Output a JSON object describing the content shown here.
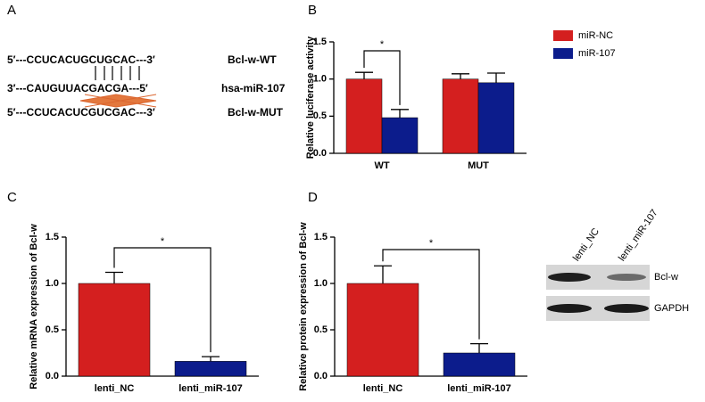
{
  "panel_a": {
    "panel_label": "A",
    "rows": [
      {
        "sequence": "5′---CCUCACUGCUGCAC---3′",
        "name": "Bcl-w-WT"
      },
      {
        "sequence": "3′---CAUGUUACGACGA---5′",
        "name": "hsa-miR-107"
      },
      {
        "sequence": "5′---CCUCACUCGUCGAC---3′",
        "name": "Bcl-w-MUT"
      }
    ]
  },
  "blot": {
    "columns": [
      "lenti_NC",
      "lenti_miR-107"
    ],
    "rows": [
      "Bcl-w",
      "GAPDH"
    ]
  },
  "chart_data": [
    {
      "type": "grouped-bar",
      "panel_label": "B",
      "y_label": "Relative luciferase activity",
      "categories": [
        "WT",
        "MUT"
      ],
      "series": [
        {
          "name": "miR-NC",
          "color": "#d41f1f",
          "values": [
            1.0,
            1.0
          ],
          "errors": [
            0.09,
            0.07
          ]
        },
        {
          "name": "miR-107",
          "color": "#0c1c8c",
          "values": [
            0.48,
            0.95
          ],
          "errors": [
            0.11,
            0.13
          ]
        }
      ],
      "ylim": [
        0,
        1.5
      ],
      "yticks": [
        {
          "value": 0,
          "label": "0.0"
        },
        0.5,
        {
          "value": 1,
          "label": "1.0"
        },
        1.5
      ],
      "significance": "*"
    },
    {
      "type": "bar",
      "panel_label": "C",
      "y_label": "Relative mRNA expression of Bcl-w",
      "categories": [
        "lenti_NC",
        "lenti_miR-107"
      ],
      "values": [
        1.0,
        0.16
      ],
      "errors": [
        0.12,
        0.05
      ],
      "colors": [
        "#d41f1f",
        "#0c1c8c"
      ],
      "ylim": [
        0,
        1.5
      ],
      "yticks": [
        {
          "value": 0,
          "label": "0.0"
        },
        0.5,
        {
          "value": 1,
          "label": "1.0"
        },
        1.5
      ],
      "significance": "*"
    },
    {
      "type": "bar",
      "panel_label": "D",
      "y_label": "Relative protein expression of Bcl-w",
      "categories": [
        "lenti_NC",
        "lenti_miR-107"
      ],
      "values": [
        1.0,
        0.25
      ],
      "errors": [
        0.19,
        0.1
      ],
      "colors": [
        "#d41f1f",
        "#0c1c8c"
      ],
      "ylim": [
        0,
        1.5
      ],
      "yticks": [
        {
          "value": 0,
          "label": "0.0"
        },
        0.5,
        {
          "value": 1,
          "label": "1.0"
        },
        1.5
      ],
      "significance": "*"
    }
  ]
}
